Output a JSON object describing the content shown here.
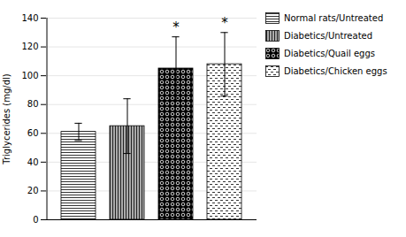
{
  "chart_data": {
    "type": "bar",
    "categories": [
      "Normal rats/Untreated",
      "Diabetics/Untreated",
      "Diabetics/Quail eggs",
      "Diabetics/Chicken eggs"
    ],
    "values": [
      61,
      65,
      105,
      108
    ],
    "errors": [
      6,
      19,
      22,
      22
    ],
    "colors": [
      "white",
      "#aaaaaa",
      "black",
      "white"
    ],
    "ylabel": "Triglycerides (mg/dl)",
    "ylim": [
      0,
      140
    ],
    "yticks": [
      0,
      20,
      40,
      60,
      80,
      100,
      120,
      140
    ],
    "annotations": [
      {
        "category": "Diabetics/Quail eggs",
        "text": "*"
      },
      {
        "category": "Diabetics/Chicken eggs",
        "text": "*"
      }
    ],
    "grid": true,
    "legend": "right",
    "tick_labels": "y"
  }
}
